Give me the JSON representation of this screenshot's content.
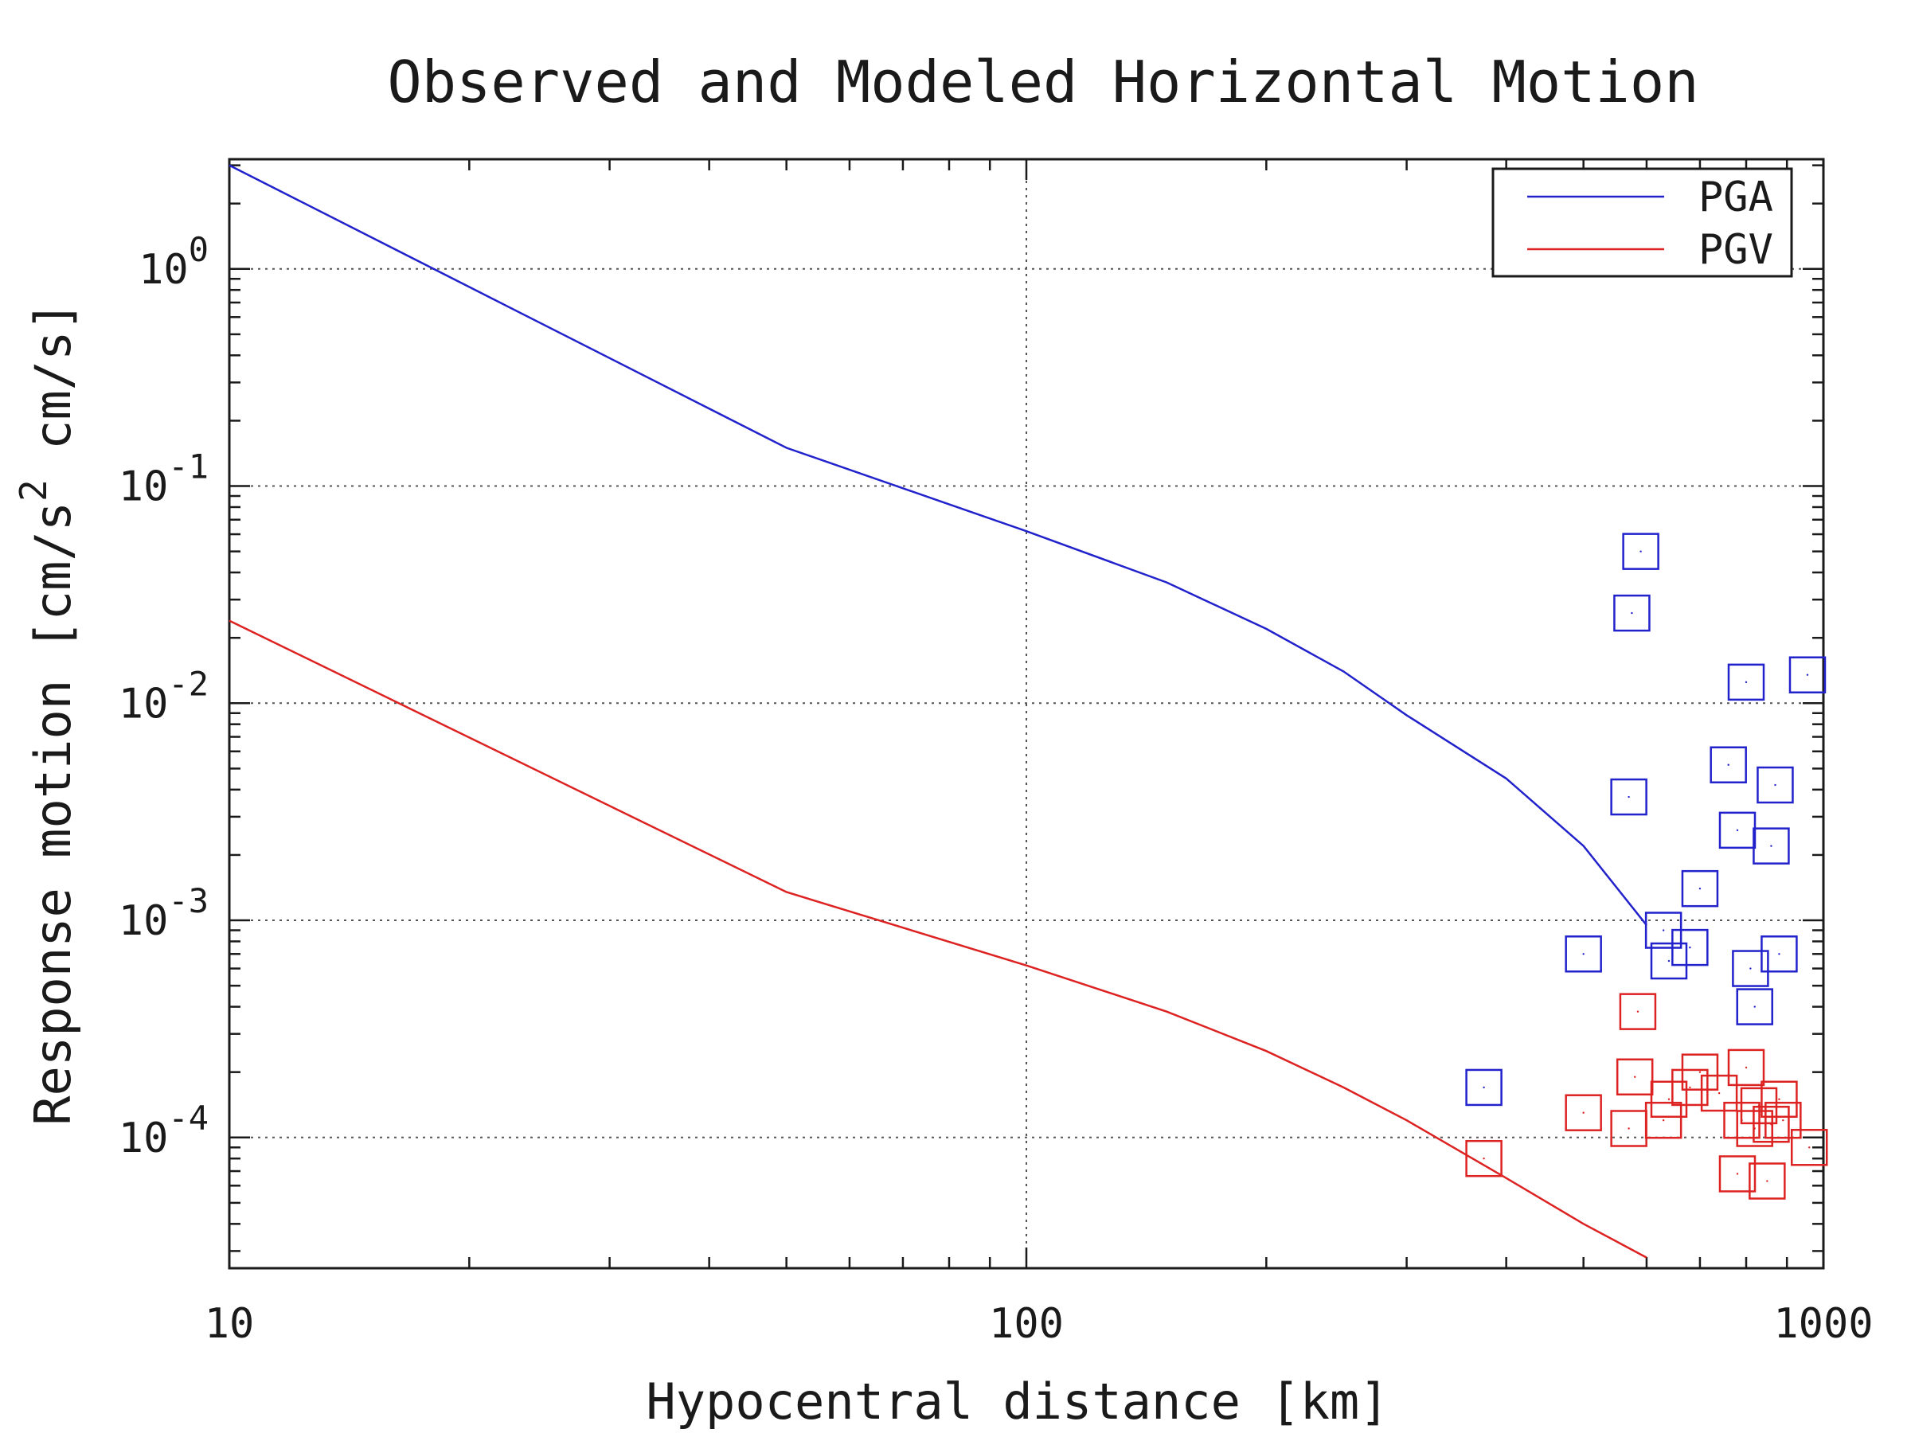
{
  "chart_data": {
    "type": "line",
    "title": "Observed and Modeled Horizontal Motion",
    "xlabel": "Hypocentral distance [km]",
    "ylabel": "Response motion [cm/s^2  cm/s]",
    "xscale": "log",
    "yscale": "log",
    "xlim": [
      10,
      1000
    ],
    "ylim": [
      2.5e-05,
      3.2
    ],
    "x_ticks": [
      {
        "value": 10,
        "label": "10"
      },
      {
        "value": 100,
        "label": "100"
      },
      {
        "value": 1000,
        "label": "1000"
      }
    ],
    "y_ticks": [
      {
        "value": 1,
        "base": "10",
        "exp": "0"
      },
      {
        "value": 0.1,
        "base": "10",
        "exp": "-1"
      },
      {
        "value": 0.01,
        "base": "10",
        "exp": "-2"
      },
      {
        "value": 0.001,
        "base": "10",
        "exp": "-3"
      },
      {
        "value": 0.0001,
        "base": "10",
        "exp": "-4"
      }
    ],
    "grid": true,
    "legend": {
      "position": "top-right",
      "entries": [
        {
          "name": "PGA",
          "color": "#2222cc"
        },
        {
          "name": "PGV",
          "color": "#dd2222"
        }
      ]
    },
    "series": [
      {
        "name": "PGA",
        "kind": "line",
        "color": "#2222cc",
        "points": [
          [
            10,
            3.0
          ],
          [
            50,
            0.15
          ],
          [
            100,
            0.062
          ],
          [
            150,
            0.036
          ],
          [
            200,
            0.022
          ],
          [
            250,
            0.014
          ],
          [
            300,
            0.0088
          ],
          [
            400,
            0.0045
          ],
          [
            500,
            0.0022
          ],
          [
            600,
            0.00095
          ]
        ]
      },
      {
        "name": "PGV",
        "kind": "line",
        "color": "#dd2222",
        "points": [
          [
            10,
            0.024
          ],
          [
            50,
            0.00135
          ],
          [
            100,
            0.00062
          ],
          [
            150,
            0.00038
          ],
          [
            200,
            0.00025
          ],
          [
            250,
            0.00017
          ],
          [
            300,
            0.00012
          ],
          [
            400,
            6.5e-05
          ],
          [
            500,
            4e-05
          ],
          [
            600,
            2.8e-05
          ]
        ]
      },
      {
        "name": "PGA observed",
        "kind": "scatter",
        "marker": "square",
        "color": "#2222cc",
        "points": [
          [
            375,
            0.00017
          ],
          [
            500,
            0.0007
          ],
          [
            570,
            0.0037
          ],
          [
            575,
            0.026
          ],
          [
            590,
            0.05
          ],
          [
            630,
            0.0009
          ],
          [
            640,
            0.00065
          ],
          [
            680,
            0.00075
          ],
          [
            700,
            0.0014
          ],
          [
            760,
            0.0052
          ],
          [
            780,
            0.0026
          ],
          [
            800,
            0.0125
          ],
          [
            810,
            0.0006
          ],
          [
            820,
            0.0004
          ],
          [
            860,
            0.0022
          ],
          [
            870,
            0.0042
          ],
          [
            880,
            0.0007
          ],
          [
            955,
            0.0135
          ]
        ]
      },
      {
        "name": "PGV observed",
        "kind": "scatter",
        "marker": "square",
        "color": "#dd2222",
        "points": [
          [
            375,
            8e-05
          ],
          [
            500,
            0.00013
          ],
          [
            570,
            0.00011
          ],
          [
            580,
            0.00019
          ],
          [
            585,
            0.00038
          ],
          [
            630,
            0.00012
          ],
          [
            640,
            0.00015
          ],
          [
            680,
            0.00017
          ],
          [
            700,
            0.0002
          ],
          [
            740,
            0.00016
          ],
          [
            780,
            6.8e-05
          ],
          [
            790,
            0.00012
          ],
          [
            800,
            0.00021
          ],
          [
            820,
            0.00011
          ],
          [
            830,
            0.00014
          ],
          [
            850,
            6.3e-05
          ],
          [
            860,
            0.000115
          ],
          [
            880,
            0.00015
          ],
          [
            890,
            0.00012
          ],
          [
            960,
            9e-05
          ]
        ]
      }
    ]
  }
}
